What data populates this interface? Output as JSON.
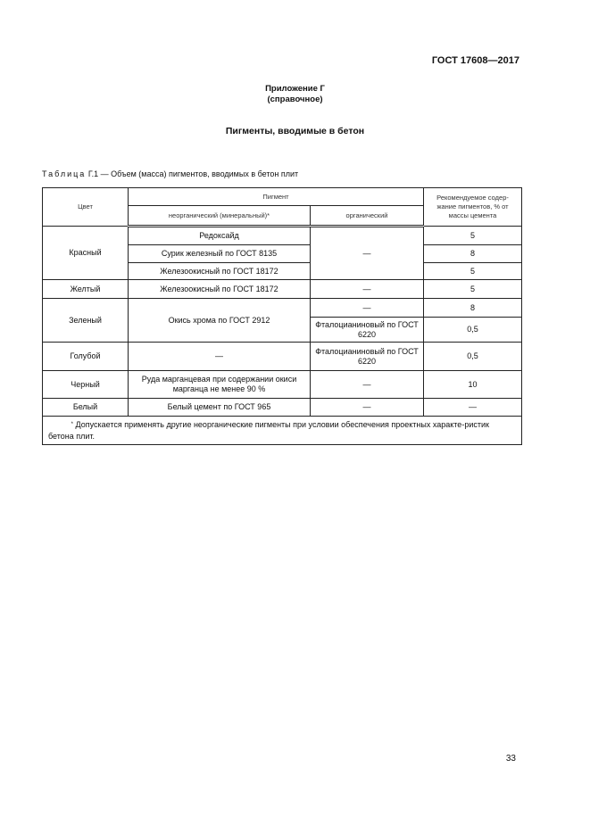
{
  "header": {
    "standard": "ГОСТ 17608—2017"
  },
  "appendix": {
    "title": "Приложение Г",
    "subtitle": "(справочное)"
  },
  "section_title": "Пигменты, вводимые в бетон",
  "table": {
    "caption_prefix": "Таблица",
    "caption": "Г.1 — Объем (масса) пигментов, вводимых в бетон плит",
    "headers": {
      "color": "Цвет",
      "pigment": "Пигмент",
      "inorganic": "неорганический (минеральный)*",
      "organic": "органический",
      "recommended": "Рекомендуемое содер-жание пигментов, % от массы цемента"
    },
    "rows": {
      "red": {
        "color": "Красный",
        "inorganic": [
          "Редоксайд",
          "Сурик железный по ГОСТ 8135",
          "Железоокисный по ГОСТ 18172"
        ],
        "organic": "—",
        "values": [
          "5",
          "8",
          "5"
        ]
      },
      "yellow": {
        "color": "Желтый",
        "inorganic": "Железоокисный по ГОСТ 18172",
        "organic": "—",
        "value": "5"
      },
      "green": {
        "color": "Зеленый",
        "inorganic": "Окись хрома по ГОСТ 2912",
        "organic": [
          "—",
          "Фталоцианиновый по ГОСТ 6220"
        ],
        "values": [
          "8",
          "0,5"
        ]
      },
      "blue": {
        "color": "Голубой",
        "inorganic": "—",
        "organic": "Фталоцианиновый по ГОСТ 6220",
        "value": "0,5"
      },
      "black": {
        "color": "Черный",
        "inorganic": "Руда марганцевая при содержании окиси марганца не менее 90 %",
        "organic": "—",
        "value": "10"
      },
      "white": {
        "color": "Белый",
        "inorganic": "Белый цемент по ГОСТ 965",
        "organic": "—",
        "value": "—"
      }
    },
    "footnote_mark": "*",
    "footnote": "Допускается применять другие неорганические пигменты при условии обеспечения проектных характе-ристик бетона плит."
  },
  "page_number": "33"
}
